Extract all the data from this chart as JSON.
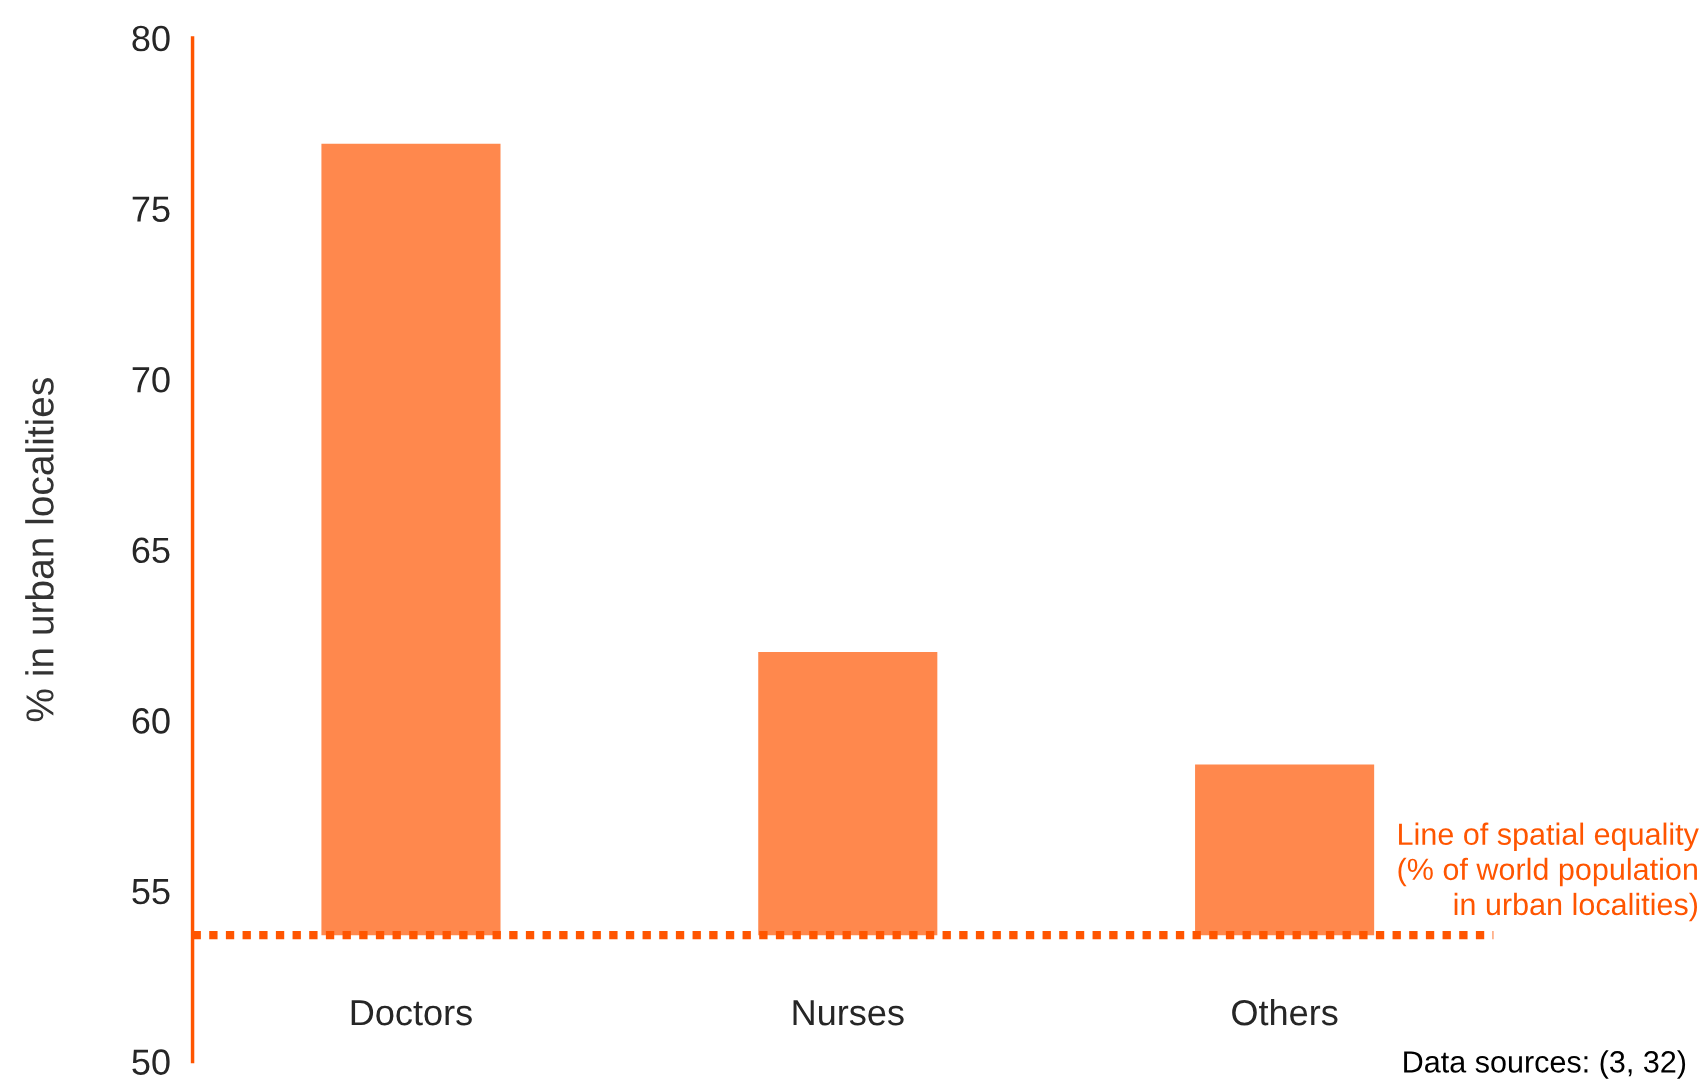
{
  "chart_data": {
    "type": "bar",
    "ylabel": "% in urban localities",
    "categories": [
      "Doctors",
      "Nurses",
      "Others"
    ],
    "base": [
      53.7,
      53.7,
      53.7
    ],
    "values": [
      23.2,
      8.3,
      5.0
    ],
    "color": "#ff884d",
    "ylim": [
      50,
      80
    ],
    "yticks": [
      50,
      55,
      60,
      65,
      70,
      75,
      80
    ],
    "grid": false,
    "ref_lines": [
      {
        "axis": "y",
        "value": 53.7,
        "label": "Line of spatial equality\n(% of world population\nin urban localities)",
        "color": "#ff5500",
        "line_style": "dotted"
      }
    ],
    "annotations": [
      "Data sources: (3, 32)"
    ]
  }
}
